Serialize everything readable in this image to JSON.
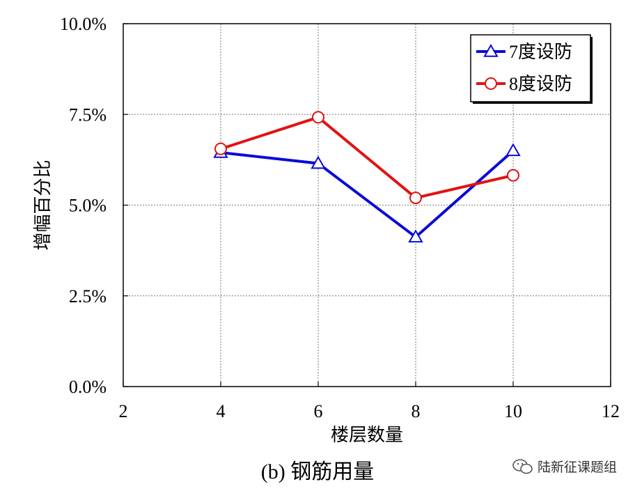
{
  "chart_data": {
    "type": "line",
    "title": "",
    "xlabel": "楼层数量",
    "ylabel": "增幅百分比",
    "xlim": [
      2,
      12
    ],
    "ylim": [
      0,
      10
    ],
    "x_ticks": [
      "2",
      "4",
      "6",
      "8",
      "10",
      "12"
    ],
    "y_ticks": [
      "0.0%",
      "2.5%",
      "5.0%",
      "7.5%",
      "10.0%"
    ],
    "grid": true,
    "legend_position": "top-right",
    "series": [
      {
        "name": "7度设防",
        "x": [
          4,
          6,
          8,
          10
        ],
        "y": [
          6.45,
          6.15,
          4.12,
          6.5
        ],
        "color": "#0a0ad8",
        "marker": "triangle"
      },
      {
        "name": "8度设防",
        "x": [
          4,
          6,
          8,
          10
        ],
        "y": [
          6.55,
          7.42,
          5.2,
          5.82
        ],
        "color": "#e21212",
        "marker": "circle"
      }
    ]
  },
  "caption": "(b)  钢筋用量",
  "watermark": {
    "text": "陆新征课题组",
    "icon": "wechat-icon"
  }
}
